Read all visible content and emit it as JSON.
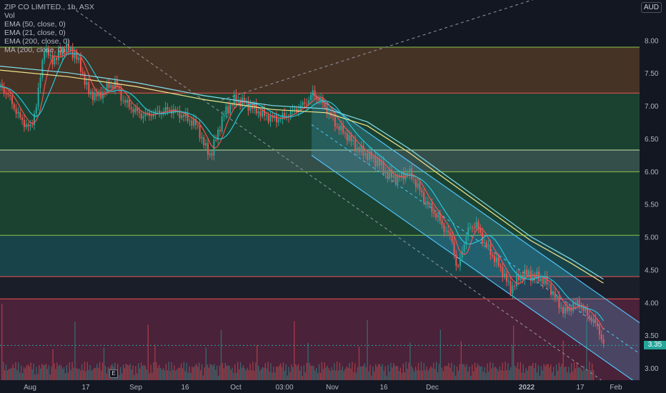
{
  "legend": {
    "title": "ZIP CO LIMITED., 1h, ASX",
    "vol": "Vol",
    "ema50": "EMA (50, close, 0)",
    "ema21": "EMA (21, close, 0)",
    "ema200": "EMA (200, close, 0)",
    "ma200": "MA (200, close, 0)"
  },
  "currency": "AUD",
  "last_price": "3.35",
  "events_badge": "E",
  "colors": {
    "background": "#131722",
    "up": "#26a69a",
    "down": "#ef5350",
    "ema50": "#26c6da",
    "ema21": "#ef5350",
    "ema200": "#f0e68c",
    "ma200": "#80deea",
    "channel": "#4fc3f7"
  },
  "chart_data": {
    "type": "candlestick",
    "symbol": "ZIP CO LIMITED.",
    "timeframe": "1h",
    "exchange": "ASX",
    "currency": "AUD",
    "ylim": [
      2.82,
      8.62
    ],
    "y_ticks": [
      3.0,
      3.5,
      4.0,
      4.5,
      5.0,
      5.5,
      6.0,
      6.5,
      7.0,
      7.5,
      8.0,
      8.5
    ],
    "x_ticks": [
      "Aug",
      "17",
      "Sep",
      "16",
      "Oct",
      "03:00",
      "Nov",
      "16",
      "Dec",
      "2022",
      "17",
      "Feb"
    ],
    "last_price": 3.35,
    "zones": [
      {
        "from": 7.2,
        "to": 7.9,
        "color": "#b07030"
      },
      {
        "from": 6.33,
        "to": 7.2,
        "color": "#2f9e50"
      },
      {
        "from": 6.0,
        "to": 6.33,
        "color": "#7cc7a0"
      },
      {
        "from": 5.03,
        "to": 6.0,
        "color": "#2f9e50"
      },
      {
        "from": 4.4,
        "to": 5.03,
        "color": "#26a69a"
      },
      {
        "from": 4.06,
        "to": 4.4,
        "color": "#2a2e39"
      },
      {
        "from": 2.82,
        "to": 4.06,
        "color": "#c03a6c"
      }
    ],
    "horizontal_lines": [
      {
        "price": 7.9,
        "color": "#8bc34a"
      },
      {
        "price": 7.2,
        "color": "#ef5350"
      },
      {
        "price": 6.33,
        "color": "#c5e1a5"
      },
      {
        "price": 6.0,
        "color": "#8bc34a"
      },
      {
        "price": 5.03,
        "color": "#8bc34a"
      },
      {
        "price": 4.4,
        "color": "#ef5350"
      },
      {
        "price": 4.06,
        "color": "#ef5350"
      }
    ],
    "price_path": [
      [
        0.0,
        7.3
      ],
      [
        0.01,
        7.2
      ],
      [
        0.02,
        7.0
      ],
      [
        0.03,
        6.8
      ],
      [
        0.045,
        6.65
      ],
      [
        0.055,
        7.1
      ],
      [
        0.065,
        7.9
      ],
      [
        0.075,
        7.7
      ],
      [
        0.085,
        7.75
      ],
      [
        0.095,
        7.9
      ],
      [
        0.11,
        7.8
      ],
      [
        0.12,
        7.55
      ],
      [
        0.13,
        7.2
      ],
      [
        0.145,
        7.15
      ],
      [
        0.16,
        7.3
      ],
      [
        0.17,
        7.35
      ],
      [
        0.18,
        7.1
      ],
      [
        0.195,
        6.95
      ],
      [
        0.21,
        6.85
      ],
      [
        0.23,
        6.9
      ],
      [
        0.25,
        6.95
      ],
      [
        0.27,
        6.85
      ],
      [
        0.29,
        6.7
      ],
      [
        0.3,
        6.4
      ],
      [
        0.31,
        6.25
      ],
      [
        0.32,
        6.6
      ],
      [
        0.33,
        6.9
      ],
      [
        0.345,
        7.1
      ],
      [
        0.36,
        7.05
      ],
      [
        0.375,
        6.95
      ],
      [
        0.39,
        6.85
      ],
      [
        0.405,
        6.8
      ],
      [
        0.42,
        6.85
      ],
      [
        0.435,
        6.95
      ],
      [
        0.45,
        7.05
      ],
      [
        0.46,
        7.2
      ],
      [
        0.47,
        7.1
      ],
      [
        0.48,
        6.95
      ],
      [
        0.495,
        6.7
      ],
      [
        0.51,
        6.55
      ],
      [
        0.525,
        6.35
      ],
      [
        0.54,
        6.25
      ],
      [
        0.555,
        6.15
      ],
      [
        0.57,
        5.95
      ],
      [
        0.585,
        5.9
      ],
      [
        0.6,
        6.0
      ],
      [
        0.61,
        5.85
      ],
      [
        0.625,
        5.55
      ],
      [
        0.64,
        5.35
      ],
      [
        0.655,
        5.1
      ],
      [
        0.665,
        4.95
      ],
      [
        0.672,
        4.45
      ],
      [
        0.68,
        4.85
      ],
      [
        0.69,
        5.15
      ],
      [
        0.7,
        5.2
      ],
      [
        0.71,
        4.95
      ],
      [
        0.725,
        4.7
      ],
      [
        0.74,
        4.45
      ],
      [
        0.75,
        4.2
      ],
      [
        0.76,
        4.35
      ],
      [
        0.77,
        4.45
      ],
      [
        0.785,
        4.4
      ],
      [
        0.8,
        4.35
      ],
      [
        0.81,
        4.2
      ],
      [
        0.82,
        4.0
      ],
      [
        0.83,
        3.85
      ],
      [
        0.84,
        3.95
      ],
      [
        0.85,
        4.0
      ],
      [
        0.86,
        3.85
      ],
      [
        0.87,
        3.75
      ],
      [
        0.88,
        3.6
      ],
      [
        0.887,
        3.35
      ]
    ],
    "ema200_path": [
      [
        0.0,
        7.55
      ],
      [
        0.1,
        7.45
      ],
      [
        0.2,
        7.3
      ],
      [
        0.3,
        7.1
      ],
      [
        0.4,
        6.95
      ],
      [
        0.48,
        6.9
      ],
      [
        0.54,
        6.7
      ],
      [
        0.6,
        6.3
      ],
      [
        0.66,
        5.85
      ],
      [
        0.72,
        5.4
      ],
      [
        0.78,
        4.95
      ],
      [
        0.84,
        4.6
      ],
      [
        0.887,
        4.3
      ]
    ],
    "channel": {
      "upper": [
        [
          0.458,
          7.2
        ],
        [
          0.96,
          3.55
        ]
      ],
      "lower": [
        [
          0.458,
          6.25
        ],
        [
          0.96,
          2.6
        ]
      ],
      "middle": [
        [
          0.458,
          6.72
        ],
        [
          0.96,
          3.08
        ]
      ]
    }
  }
}
